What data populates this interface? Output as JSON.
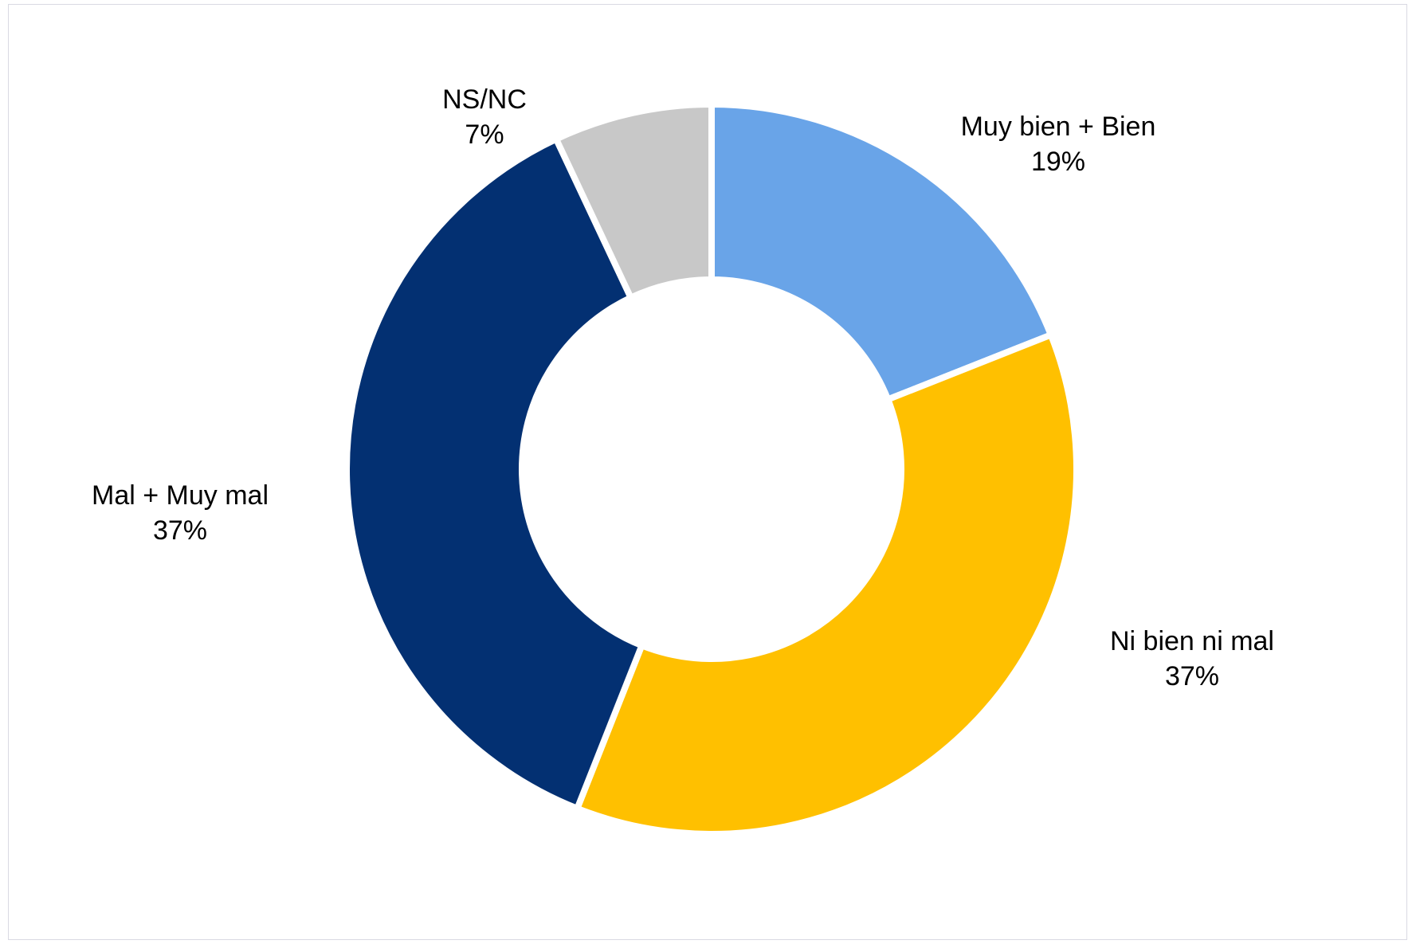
{
  "chart_data": {
    "type": "pie",
    "donut": true,
    "title": "",
    "slices": [
      {
        "label": "Muy bien + Bien",
        "value": 19,
        "value_label": "19%",
        "color": "#69A4E8"
      },
      {
        "label": "Ni bien ni mal",
        "value": 37,
        "value_label": "37%",
        "color": "#FFC000"
      },
      {
        "label": "Mal + Muy mal",
        "value": 37,
        "value_label": "37%",
        "color": "#033072"
      },
      {
        "label": "NS/NC",
        "value": 7,
        "value_label": "7%",
        "color": "#C8C8C8"
      }
    ],
    "legend": "none",
    "start_angle": "12 o'clock",
    "direction": "clockwise"
  }
}
